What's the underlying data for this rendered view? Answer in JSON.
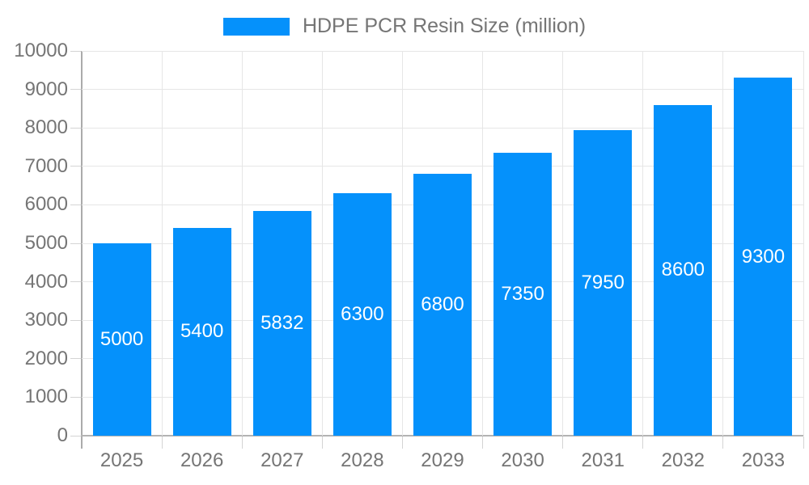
{
  "legend": {
    "label": "HDPE PCR Resin Size (million)"
  },
  "colors": {
    "bar": "#0591fb",
    "grid": "#e6e6e6",
    "axis": "#b0b0b0",
    "tick": "#d4d4d4",
    "axis_text": "#757575",
    "bar_label_text": "#ffffff",
    "background": "#ffffff"
  },
  "chart_data": {
    "type": "bar",
    "title": "HDPE PCR Resin Size (million)",
    "categories": [
      "2025",
      "2026",
      "2027",
      "2028",
      "2029",
      "2030",
      "2031",
      "2032",
      "2033"
    ],
    "values": [
      5000,
      5400,
      5832,
      6300,
      6800,
      7350,
      7950,
      8600,
      9300
    ],
    "xlabel": "",
    "ylabel": "",
    "ylim": [
      0,
      10000
    ],
    "ytick_step": 1000,
    "grid": true,
    "legend_position": "top",
    "bar_labels_inside": true
  }
}
